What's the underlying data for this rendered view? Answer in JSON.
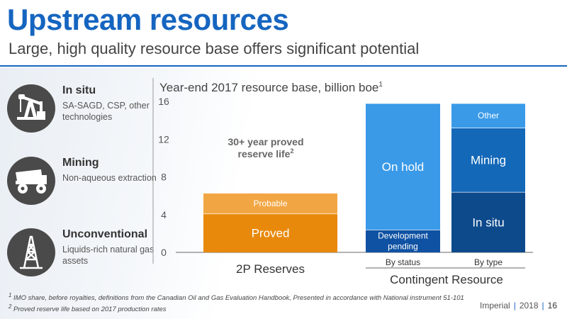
{
  "header": {
    "title": "Upstream resources",
    "subtitle": "Large, high quality resource base offers significant potential"
  },
  "resource_types": [
    {
      "title": "In situ",
      "desc": "SA-SAGD, CSP, other technologies",
      "icon": "oil-pump-icon"
    },
    {
      "title": "Mining",
      "desc": "Non-aqueous extraction",
      "icon": "haul-truck-icon"
    },
    {
      "title": "Unconventional",
      "desc": "Liquids-rich natural gas assets",
      "icon": "drilling-rig-icon"
    }
  ],
  "chart_data": {
    "type": "bar",
    "stacked": true,
    "title": "Year-end 2017 resource base, billion boe",
    "title_sup": "1",
    "ylim": [
      0,
      16
    ],
    "yticks": [
      0,
      4,
      8,
      12,
      16
    ],
    "grid": false,
    "annotation": {
      "text": "30+ year proved reserve life",
      "sup": "2"
    },
    "bars": [
      {
        "category": "2P Reserves",
        "segments": [
          {
            "name": "Proved",
            "value": 4.1,
            "color": "#e8890c"
          },
          {
            "name": "Probable",
            "value": 2.2,
            "color": "#f2a643"
          }
        ]
      },
      {
        "category": "By status",
        "segments": [
          {
            "name": "Development pending",
            "value": 2.4,
            "color": "#0f52a3"
          },
          {
            "name": "On hold",
            "value": 13.4,
            "color": "#3a9ae8"
          }
        ]
      },
      {
        "category": "By type",
        "segments": [
          {
            "name": "In situ",
            "value": 6.4,
            "color": "#0d4a8c"
          },
          {
            "name": "Mining",
            "value": 6.8,
            "color": "#1468b8"
          },
          {
            "name": "Other",
            "value": 2.6,
            "color": "#3a9ae8"
          }
        ]
      }
    ],
    "group_label": "Contingent Resource"
  },
  "footnotes": {
    "n1": {
      "sup": "1",
      "text": "IMO share, before royalties, definitions from the Canadian Oil and Gas Evaluation Handbook, Presented in accordance with National instrument 51-101"
    },
    "n2": {
      "sup": "2",
      "text": "Proved reserve life based on 2017 production rates"
    }
  },
  "footer": {
    "company": "Imperial",
    "year": "2018",
    "page": "16"
  },
  "colors": {
    "brand_blue": "#1565c0",
    "orange": "#e8890c",
    "light_orange": "#f2a643"
  }
}
